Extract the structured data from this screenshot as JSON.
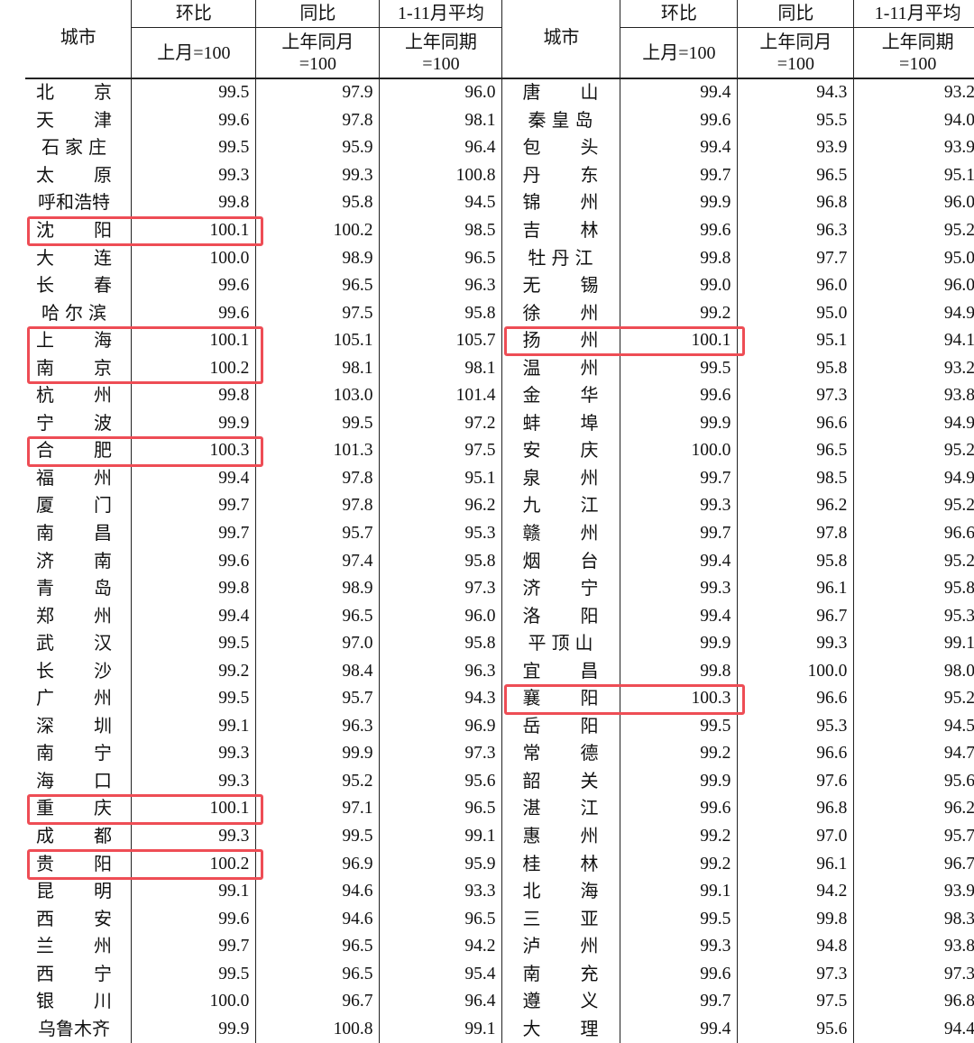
{
  "headers": {
    "city": "城市",
    "mom": "环比",
    "mom_sub": "上月=100",
    "yoy": "同比",
    "yoy_sub1": "上年同月",
    "yoy_sub2": "=100",
    "avg": "1-11月平均",
    "avg_sub1": "上年同期",
    "avg_sub2": "=100"
  },
  "highlight_color": "#ee4d55",
  "left_rows": [
    {
      "city": "北京",
      "mom": "99.5",
      "yoy": "97.9",
      "avg": "96.0"
    },
    {
      "city": "天津",
      "mom": "99.6",
      "yoy": "97.8",
      "avg": "98.1"
    },
    {
      "city": "石家庄",
      "mom": "99.5",
      "yoy": "95.9",
      "avg": "96.4"
    },
    {
      "city": "太原",
      "mom": "99.3",
      "yoy": "99.3",
      "avg": "100.8"
    },
    {
      "city": "呼和浩特",
      "mom": "99.8",
      "yoy": "95.8",
      "avg": "94.5"
    },
    {
      "city": "沈阳",
      "mom": "100.1",
      "yoy": "100.2",
      "avg": "98.5",
      "highlighted": true
    },
    {
      "city": "大连",
      "mom": "100.0",
      "yoy": "98.9",
      "avg": "96.5"
    },
    {
      "city": "长春",
      "mom": "99.6",
      "yoy": "96.5",
      "avg": "96.3"
    },
    {
      "city": "哈尔滨",
      "mom": "99.6",
      "yoy": "97.5",
      "avg": "95.8"
    },
    {
      "city": "上海",
      "mom": "100.1",
      "yoy": "105.1",
      "avg": "105.7",
      "highlighted": true
    },
    {
      "city": "南京",
      "mom": "100.2",
      "yoy": "98.1",
      "avg": "98.1",
      "highlighted": true
    },
    {
      "city": "杭州",
      "mom": "99.8",
      "yoy": "103.0",
      "avg": "101.4"
    },
    {
      "city": "宁波",
      "mom": "99.9",
      "yoy": "99.5",
      "avg": "97.2"
    },
    {
      "city": "合肥",
      "mom": "100.3",
      "yoy": "101.3",
      "avg": "97.5",
      "highlighted": true
    },
    {
      "city": "福州",
      "mom": "99.4",
      "yoy": "97.8",
      "avg": "95.1"
    },
    {
      "city": "厦门",
      "mom": "99.7",
      "yoy": "97.8",
      "avg": "96.2"
    },
    {
      "city": "南昌",
      "mom": "99.7",
      "yoy": "95.7",
      "avg": "95.3"
    },
    {
      "city": "济南",
      "mom": "99.6",
      "yoy": "97.4",
      "avg": "95.8"
    },
    {
      "city": "青岛",
      "mom": "99.8",
      "yoy": "98.9",
      "avg": "97.3"
    },
    {
      "city": "郑州",
      "mom": "99.4",
      "yoy": "96.5",
      "avg": "96.0"
    },
    {
      "city": "武汉",
      "mom": "99.5",
      "yoy": "97.0",
      "avg": "95.8"
    },
    {
      "city": "长沙",
      "mom": "99.2",
      "yoy": "98.4",
      "avg": "96.3"
    },
    {
      "city": "广州",
      "mom": "99.5",
      "yoy": "95.7",
      "avg": "94.3"
    },
    {
      "city": "深圳",
      "mom": "99.1",
      "yoy": "96.3",
      "avg": "96.9"
    },
    {
      "city": "南宁",
      "mom": "99.3",
      "yoy": "99.9",
      "avg": "97.3"
    },
    {
      "city": "海口",
      "mom": "99.3",
      "yoy": "95.2",
      "avg": "95.6"
    },
    {
      "city": "重庆",
      "mom": "100.1",
      "yoy": "97.1",
      "avg": "96.5",
      "highlighted": true
    },
    {
      "city": "成都",
      "mom": "99.3",
      "yoy": "99.5",
      "avg": "99.1"
    },
    {
      "city": "贵阳",
      "mom": "100.2",
      "yoy": "96.9",
      "avg": "95.9",
      "highlighted": true
    },
    {
      "city": "昆明",
      "mom": "99.1",
      "yoy": "94.6",
      "avg": "93.3"
    },
    {
      "city": "西安",
      "mom": "99.6",
      "yoy": "94.6",
      "avg": "96.5"
    },
    {
      "city": "兰州",
      "mom": "99.7",
      "yoy": "96.5",
      "avg": "94.2"
    },
    {
      "city": "西宁",
      "mom": "99.5",
      "yoy": "96.5",
      "avg": "95.4"
    },
    {
      "city": "银川",
      "mom": "100.0",
      "yoy": "96.7",
      "avg": "96.4"
    },
    {
      "city": "乌鲁木齐",
      "mom": "99.9",
      "yoy": "100.8",
      "avg": "99.1"
    }
  ],
  "right_rows": [
    {
      "city": "唐山",
      "mom": "99.4",
      "yoy": "94.3",
      "avg": "93.2"
    },
    {
      "city": "秦皇岛",
      "mom": "99.6",
      "yoy": "95.5",
      "avg": "94.0"
    },
    {
      "city": "包头",
      "mom": "99.4",
      "yoy": "93.9",
      "avg": "93.9"
    },
    {
      "city": "丹东",
      "mom": "99.7",
      "yoy": "96.5",
      "avg": "95.1"
    },
    {
      "city": "锦州",
      "mom": "99.9",
      "yoy": "96.8",
      "avg": "96.0"
    },
    {
      "city": "吉林",
      "mom": "99.6",
      "yoy": "96.3",
      "avg": "95.2"
    },
    {
      "city": "牡丹江",
      "mom": "99.8",
      "yoy": "97.7",
      "avg": "95.0"
    },
    {
      "city": "无锡",
      "mom": "99.0",
      "yoy": "96.0",
      "avg": "96.0"
    },
    {
      "city": "徐州",
      "mom": "99.2",
      "yoy": "95.0",
      "avg": "94.9"
    },
    {
      "city": "扬州",
      "mom": "100.1",
      "yoy": "95.1",
      "avg": "94.1",
      "highlighted": true
    },
    {
      "city": "温州",
      "mom": "99.5",
      "yoy": "95.8",
      "avg": "93.2"
    },
    {
      "city": "金华",
      "mom": "99.6",
      "yoy": "97.3",
      "avg": "93.8"
    },
    {
      "city": "蚌埠",
      "mom": "99.9",
      "yoy": "96.6",
      "avg": "94.9"
    },
    {
      "city": "安庆",
      "mom": "100.0",
      "yoy": "96.5",
      "avg": "95.2"
    },
    {
      "city": "泉州",
      "mom": "99.7",
      "yoy": "98.5",
      "avg": "94.9"
    },
    {
      "city": "九江",
      "mom": "99.3",
      "yoy": "96.2",
      "avg": "95.2"
    },
    {
      "city": "赣州",
      "mom": "99.7",
      "yoy": "97.8",
      "avg": "96.6"
    },
    {
      "city": "烟台",
      "mom": "99.4",
      "yoy": "95.8",
      "avg": "95.2"
    },
    {
      "city": "济宁",
      "mom": "99.3",
      "yoy": "96.1",
      "avg": "95.8"
    },
    {
      "city": "洛阳",
      "mom": "99.4",
      "yoy": "96.7",
      "avg": "95.3"
    },
    {
      "city": "平顶山",
      "mom": "99.9",
      "yoy": "99.3",
      "avg": "99.1"
    },
    {
      "city": "宜昌",
      "mom": "99.8",
      "yoy": "100.0",
      "avg": "98.0"
    },
    {
      "city": "襄阳",
      "mom": "100.3",
      "yoy": "96.6",
      "avg": "95.2",
      "highlighted": true
    },
    {
      "city": "岳阳",
      "mom": "99.5",
      "yoy": "95.3",
      "avg": "94.5"
    },
    {
      "city": "常德",
      "mom": "99.2",
      "yoy": "96.6",
      "avg": "94.7"
    },
    {
      "city": "韶关",
      "mom": "99.9",
      "yoy": "97.6",
      "avg": "95.6"
    },
    {
      "city": "湛江",
      "mom": "99.6",
      "yoy": "96.8",
      "avg": "96.2"
    },
    {
      "city": "惠州",
      "mom": "99.2",
      "yoy": "97.0",
      "avg": "95.7"
    },
    {
      "city": "桂林",
      "mom": "99.2",
      "yoy": "96.1",
      "avg": "96.7"
    },
    {
      "city": "北海",
      "mom": "99.1",
      "yoy": "94.2",
      "avg": "93.9"
    },
    {
      "city": "三亚",
      "mom": "99.5",
      "yoy": "99.8",
      "avg": "98.3"
    },
    {
      "city": "泸州",
      "mom": "99.3",
      "yoy": "94.8",
      "avg": "93.8"
    },
    {
      "city": "南充",
      "mom": "99.6",
      "yoy": "97.3",
      "avg": "97.3"
    },
    {
      "city": "遵义",
      "mom": "99.7",
      "yoy": "97.5",
      "avg": "96.8"
    },
    {
      "city": "大理",
      "mom": "99.4",
      "yoy": "95.6",
      "avg": "94.4"
    }
  ]
}
